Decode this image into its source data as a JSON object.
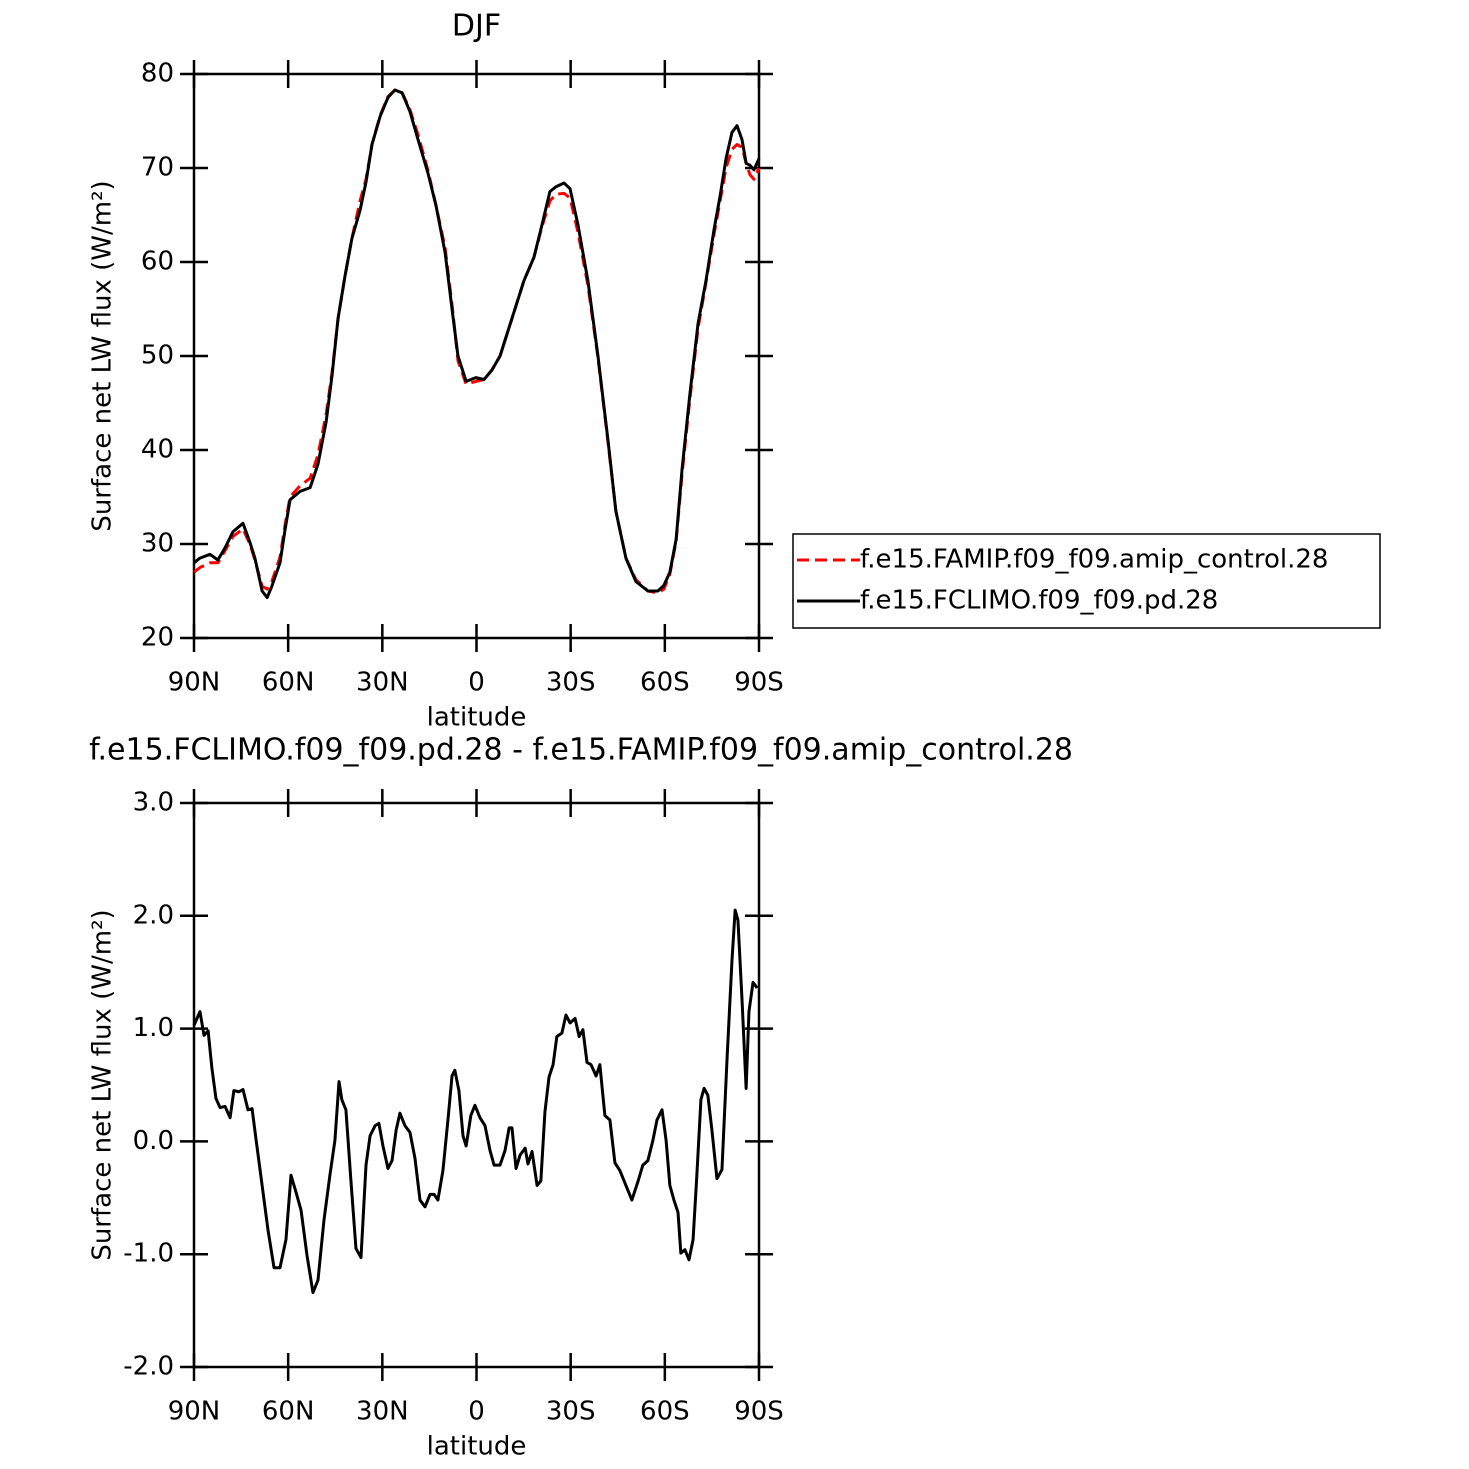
{
  "chart_data": [
    {
      "type": "line",
      "title": "DJF",
      "xlabel": "latitude",
      "ylabel": "Surface net LW flux (W/m²)",
      "xlim": [
        90,
        -90
      ],
      "xticks": [
        {
          "value": 90,
          "label": "90N"
        },
        {
          "value": 60,
          "label": "60N"
        },
        {
          "value": 30,
          "label": "30N"
        },
        0,
        {
          "value": -30,
          "label": "30S"
        },
        {
          "value": -60,
          "label": "60S"
        },
        {
          "value": -90,
          "label": "90S"
        }
      ],
      "ylim": [
        20,
        80
      ],
      "yticks": [
        20,
        30,
        40,
        50,
        60,
        70,
        80
      ],
      "legend": "right",
      "x": [
        90.0,
        88.1,
        84.9,
        82.4,
        80.1,
        77.6,
        74.4,
        72.2,
        70.6,
        68.3,
        66.7,
        65.2,
        62.6,
        61.0,
        59.4,
        56.2,
        53.0,
        50.5,
        47.9,
        46.0,
        44.1,
        41.9,
        39.7,
        37.1,
        35.2,
        33.3,
        30.7,
        28.2,
        26.0,
        23.7,
        21.2,
        18.6,
        15.5,
        12.9,
        10.0,
        7.8,
        5.9,
        3.3,
        0.2,
        -2.4,
        -4.9,
        -7.5,
        -11.3,
        -15.1,
        -18.3,
        -20.9,
        -23.4,
        -25.3,
        -27.9,
        -29.8,
        -32.3,
        -35.5,
        -38.7,
        -41.9,
        -44.4,
        -47.6,
        -50.8,
        -54.6,
        -57.8,
        -59.7,
        -61.6,
        -63.6,
        -65.5,
        -68.0,
        -70.6,
        -73.1,
        -75.7,
        -77.6,
        -79.5,
        -81.4,
        -83.0,
        -84.6,
        -85.9,
        -87.1,
        -88.4,
        -90.0
      ],
      "series": [
        {
          "name": "f.e15.FAMIP.f09_f09.amip_control.28",
          "color": "#ff0000",
          "dashed": true,
          "values": [
            27.0,
            27.5,
            28.0,
            28.0,
            29.3,
            30.8,
            31.6,
            30.0,
            28.3,
            25.5,
            25.2,
            26.0,
            28.6,
            32.0,
            35.0,
            36.2,
            37.0,
            39.5,
            43.8,
            48.3,
            54.0,
            58.5,
            62.5,
            66.5,
            68.8,
            72.5,
            75.6,
            77.6,
            78.3,
            78.0,
            76.2,
            73.5,
            69.8,
            66.0,
            61.5,
            55.5,
            49.5,
            47.0,
            47.3,
            47.5,
            48.5,
            50.0,
            54.0,
            58.0,
            60.5,
            63.8,
            66.5,
            67.2,
            67.3,
            66.8,
            63.2,
            57.5,
            49.8,
            40.8,
            33.5,
            28.5,
            26.2,
            25.0,
            24.8,
            25.2,
            26.8,
            30.3,
            37.5,
            45.5,
            53.0,
            57.8,
            63.0,
            66.5,
            70.0,
            72.0,
            72.5,
            72.2,
            70.5,
            69.3,
            68.8,
            70.0
          ]
        },
        {
          "name": "f.e15.FCLIMO.f09_f09.pd.28",
          "color": "#000000",
          "dashed": false,
          "values": [
            28.0,
            28.5,
            28.9,
            28.3,
            29.6,
            31.3,
            32.2,
            30.2,
            28.5,
            25.0,
            24.3,
            25.5,
            28.0,
            31.5,
            34.7,
            35.6,
            36.0,
            38.5,
            43.0,
            48.0,
            54.0,
            58.5,
            62.5,
            65.5,
            68.5,
            72.5,
            75.5,
            77.5,
            78.3,
            78.0,
            76.0,
            73.0,
            69.5,
            66.0,
            61.0,
            55.0,
            50.0,
            47.3,
            47.7,
            47.5,
            48.5,
            50.0,
            54.0,
            58.0,
            60.5,
            64.0,
            67.5,
            68.0,
            68.4,
            67.8,
            64.0,
            58.0,
            50.0,
            41.0,
            33.5,
            28.5,
            26.0,
            25.0,
            25.0,
            25.6,
            27.0,
            30.5,
            38.0,
            46.0,
            53.5,
            58.0,
            63.5,
            67.0,
            71.0,
            73.8,
            74.5,
            73.0,
            70.5,
            70.3,
            69.8,
            71.0
          ]
        }
      ]
    },
    {
      "type": "line",
      "title": "f.e15.FCLIMO.f09_f09.pd.28 - f.e15.FAMIP.f09_f09.amip_control.28",
      "xlabel": "latitude",
      "ylabel": "Surface net LW flux (W/m²)",
      "xlim": [
        90,
        -90
      ],
      "xticks": [
        {
          "value": 90,
          "label": "90N"
        },
        {
          "value": 60,
          "label": "60N"
        },
        {
          "value": 30,
          "label": "30N"
        },
        0,
        {
          "value": -30,
          "label": "30S"
        },
        {
          "value": -60,
          "label": "60S"
        },
        {
          "value": -90,
          "label": "90S"
        }
      ],
      "ylim": [
        -2,
        3
      ],
      "yticks": [
        {
          "value": -2,
          "label": "-2.0"
        },
        {
          "value": -1,
          "label": "-1.0"
        },
        {
          "value": 0,
          "label": "0.0"
        },
        {
          "value": 1,
          "label": "1.0"
        },
        {
          "value": 2,
          "label": "2.0"
        },
        {
          "value": 3,
          "label": "3.0"
        }
      ],
      "x": [
        90.0,
        88.1,
        86.8,
        85.5,
        84.3,
        83.0,
        81.7,
        80.1,
        78.5,
        77.3,
        75.7,
        74.4,
        72.8,
        71.5,
        70.2,
        68.3,
        66.4,
        64.5,
        62.6,
        60.7,
        59.1,
        57.5,
        55.9,
        54.0,
        52.1,
        50.5,
        48.6,
        46.7,
        45.1,
        43.8,
        42.9,
        41.6,
        40.0,
        38.4,
        36.8,
        35.2,
        33.9,
        32.3,
        31.1,
        29.8,
        28.2,
        26.9,
        25.6,
        24.4,
        22.8,
        21.2,
        19.6,
        18.0,
        16.4,
        14.8,
        13.5,
        12.3,
        10.7,
        9.1,
        7.8,
        6.9,
        5.6,
        4.3,
        3.3,
        1.8,
        0.5,
        -1.1,
        -2.7,
        -4.3,
        -5.6,
        -7.5,
        -9.1,
        -10.4,
        -11.3,
        -12.6,
        -13.9,
        -15.5,
        -16.4,
        -17.7,
        -19.3,
        -20.5,
        -21.8,
        -23.1,
        -24.4,
        -25.6,
        -27.2,
        -28.5,
        -29.8,
        -31.4,
        -32.7,
        -33.9,
        -35.2,
        -36.5,
        -38.1,
        -39.3,
        -40.9,
        -42.5,
        -44.1,
        -45.7,
        -47.6,
        -49.5,
        -51.5,
        -53.0,
        -54.6,
        -56.2,
        -57.5,
        -59.1,
        -60.4,
        -61.6,
        -62.9,
        -64.2,
        -65.1,
        -66.4,
        -67.7,
        -69.0,
        -70.2,
        -71.5,
        -72.5,
        -73.7,
        -75.0,
        -76.6,
        -78.2,
        -79.8,
        -81.4,
        -82.4,
        -83.3,
        -84.6,
        -85.9,
        -86.8,
        -88.1,
        -89.4
      ],
      "series": [
        {
          "color": "#000000",
          "dashed": false,
          "values": [
            1.03,
            1.15,
            0.94,
            0.98,
            0.65,
            0.38,
            0.3,
            0.31,
            0.21,
            0.45,
            0.44,
            0.46,
            0.28,
            0.29,
            0.01,
            -0.39,
            -0.79,
            -1.12,
            -1.12,
            -0.87,
            -0.3,
            -0.45,
            -0.61,
            -1.01,
            -1.34,
            -1.23,
            -0.7,
            -0.3,
            0.01,
            0.53,
            0.37,
            0.28,
            -0.35,
            -0.95,
            -1.03,
            -0.21,
            0.05,
            0.14,
            0.16,
            -0.04,
            -0.24,
            -0.17,
            0.1,
            0.25,
            0.14,
            0.08,
            -0.15,
            -0.52,
            -0.58,
            -0.47,
            -0.47,
            -0.52,
            -0.26,
            0.19,
            0.58,
            0.63,
            0.45,
            0.05,
            -0.04,
            0.23,
            0.32,
            0.21,
            0.14,
            -0.08,
            -0.21,
            -0.21,
            -0.08,
            0.12,
            0.12,
            -0.24,
            -0.12,
            -0.06,
            -0.2,
            -0.09,
            -0.39,
            -0.35,
            0.26,
            0.57,
            0.68,
            0.93,
            0.96,
            1.12,
            1.05,
            1.09,
            0.93,
            0.99,
            0.7,
            0.68,
            0.58,
            0.68,
            0.23,
            0.19,
            -0.19,
            -0.26,
            -0.39,
            -0.52,
            -0.35,
            -0.21,
            -0.17,
            0.01,
            0.19,
            0.28,
            0.01,
            -0.39,
            -0.52,
            -0.63,
            -0.99,
            -0.96,
            -1.05,
            -0.87,
            -0.3,
            0.37,
            0.47,
            0.41,
            0.1,
            -0.33,
            -0.25,
            0.72,
            1.61,
            2.05,
            1.96,
            1.25,
            0.47,
            1.15,
            1.41,
            1.36
          ]
        }
      ]
    }
  ]
}
